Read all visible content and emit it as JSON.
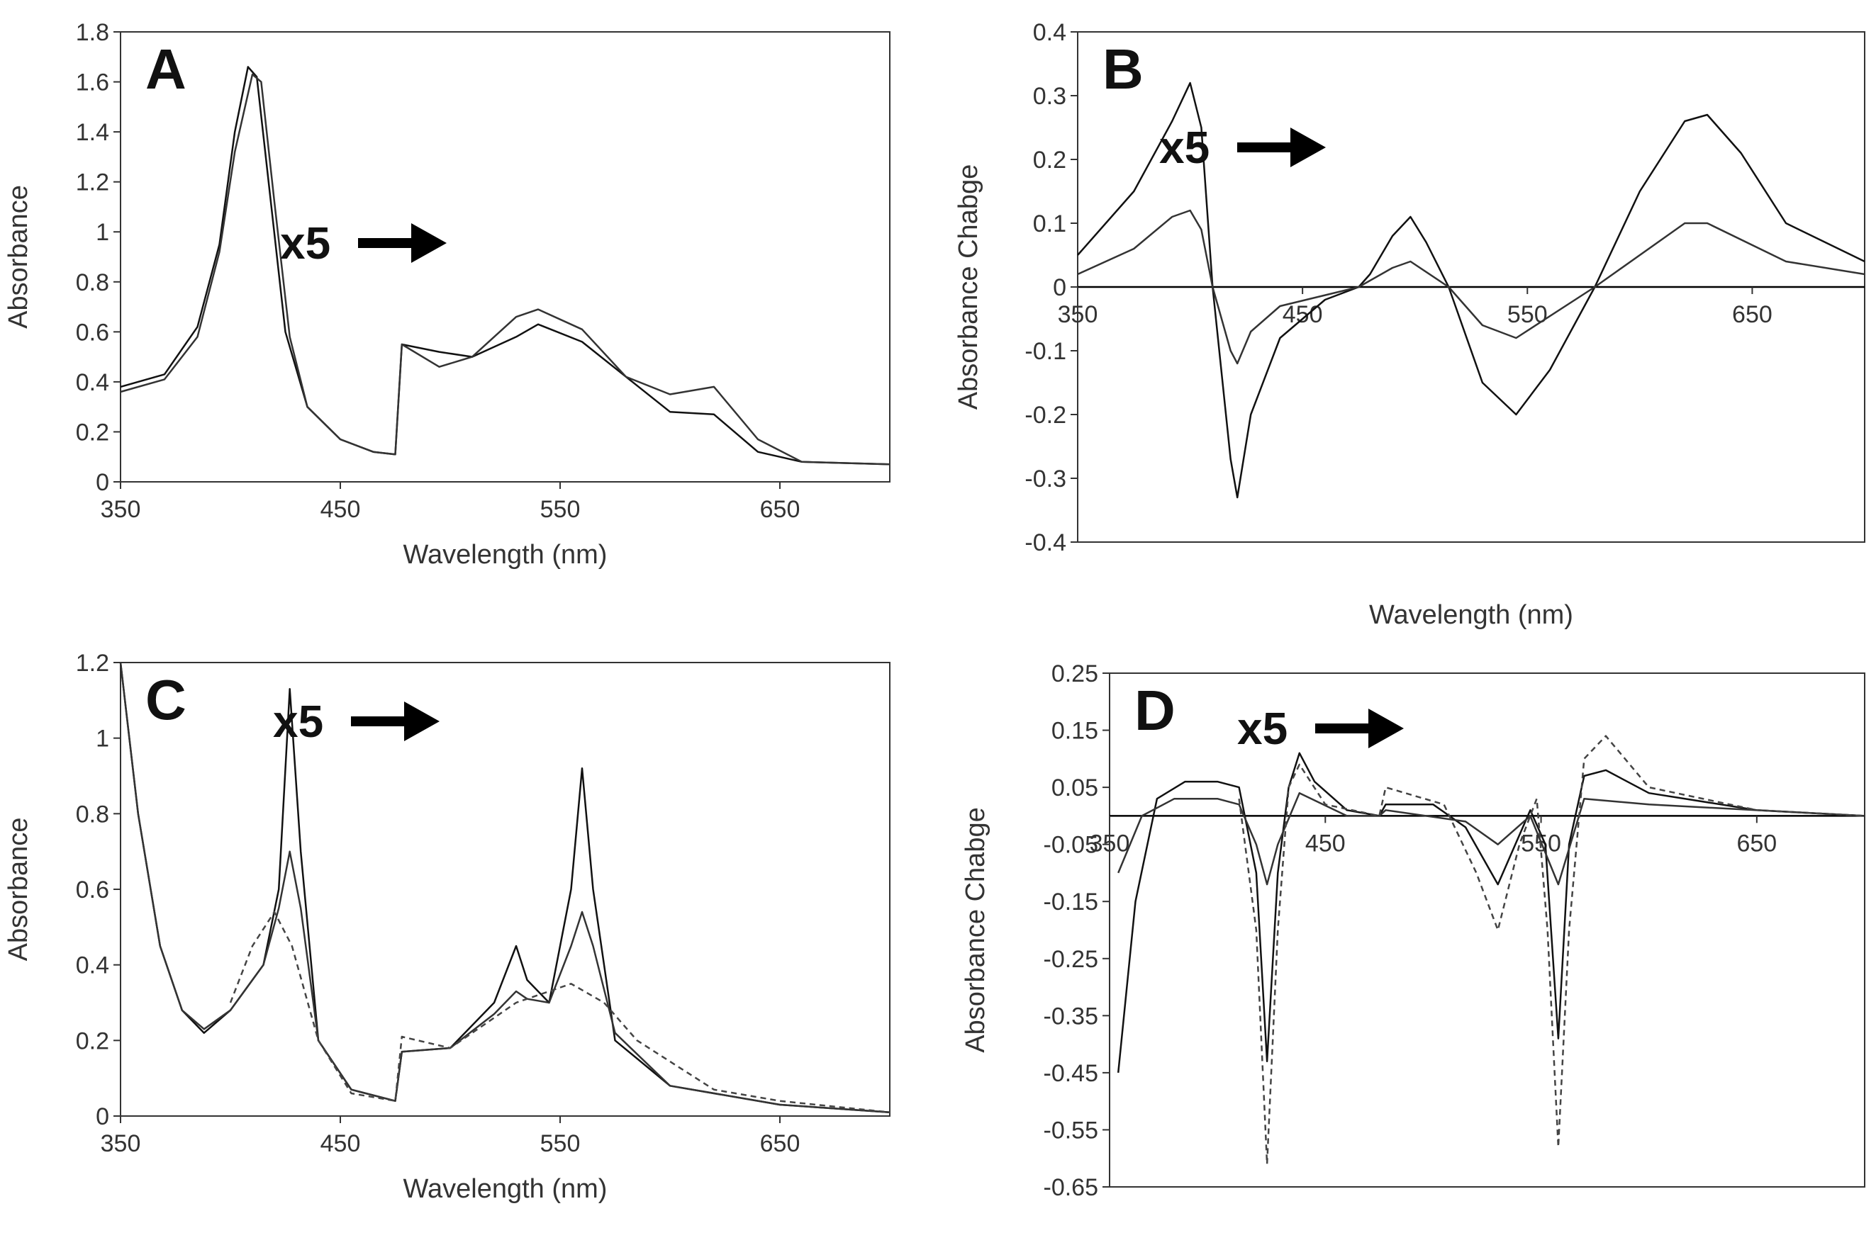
{
  "chart_data": [
    {
      "panel": "A",
      "type": "line",
      "xlabel": "Wavelength (nm)",
      "ylabel": "Absorbance",
      "xlim": [
        350,
        700
      ],
      "ylim": [
        0,
        1.8
      ],
      "xticks": [
        350,
        450,
        550,
        650
      ],
      "yticks": [
        0,
        0.2,
        0.4,
        0.6,
        0.8,
        1,
        1.2,
        1.4,
        1.6,
        1.8
      ],
      "zero_line": false,
      "magnification": {
        "label": "x5",
        "start_x": 475,
        "arrow": "right"
      },
      "series_count": 11,
      "series_style": "thin gray/black lines",
      "series": [
        {
          "style": "solid",
          "points": [
            [
              350,
              0.38
            ],
            [
              370,
              0.43
            ],
            [
              385,
              0.62
            ],
            [
              395,
              0.95
            ],
            [
              402,
              1.4
            ],
            [
              408,
              1.66
            ],
            [
              412,
              1.62
            ],
            [
              418,
              1.15
            ],
            [
              425,
              0.6
            ],
            [
              435,
              0.3
            ],
            [
              450,
              0.17
            ],
            [
              465,
              0.12
            ],
            [
              475,
              0.11
            ],
            [
              478,
              0.55
            ],
            [
              495,
              0.52
            ],
            [
              510,
              0.5
            ],
            [
              530,
              0.58
            ],
            [
              540,
              0.63
            ],
            [
              560,
              0.56
            ],
            [
              580,
              0.42
            ],
            [
              600,
              0.28
            ],
            [
              620,
              0.27
            ],
            [
              640,
              0.12
            ],
            [
              660,
              0.08
            ],
            [
              700,
              0.07
            ]
          ]
        },
        {
          "style": "solid",
          "points": [
            [
              350,
              0.36
            ],
            [
              370,
              0.41
            ],
            [
              385,
              0.58
            ],
            [
              395,
              0.92
            ],
            [
              402,
              1.32
            ],
            [
              410,
              1.63
            ],
            [
              414,
              1.6
            ],
            [
              420,
              1.12
            ],
            [
              427,
              0.58
            ],
            [
              435,
              0.3
            ],
            [
              450,
              0.17
            ],
            [
              465,
              0.12
            ],
            [
              475,
              0.11
            ],
            [
              478,
              0.55
            ],
            [
              495,
              0.46
            ],
            [
              510,
              0.5
            ],
            [
              530,
              0.66
            ],
            [
              540,
              0.69
            ],
            [
              560,
              0.61
            ],
            [
              580,
              0.42
            ],
            [
              600,
              0.35
            ],
            [
              620,
              0.38
            ],
            [
              640,
              0.17
            ],
            [
              660,
              0.08
            ],
            [
              700,
              0.07
            ]
          ]
        }
      ]
    },
    {
      "panel": "B",
      "type": "line",
      "xlabel": "Wavelength (nm)",
      "ylabel": "Absorbance Chabge",
      "xlim": [
        350,
        700
      ],
      "ylim": [
        -0.4,
        0.4
      ],
      "xticks": [
        350,
        450,
        550,
        650
      ],
      "yticks": [
        -0.4,
        -0.3,
        -0.2,
        -0.1,
        0,
        0.1,
        0.2,
        0.3,
        0.4
      ],
      "zero_line": true,
      "magnification": {
        "label": "x5",
        "start_x": 475,
        "arrow": "right"
      },
      "series_count": 11,
      "series_style": "thin gray/black lines",
      "series": [
        {
          "style": "solid",
          "points": [
            [
              350,
              0.05
            ],
            [
              375,
              0.15
            ],
            [
              392,
              0.26
            ],
            [
              400,
              0.32
            ],
            [
              405,
              0.25
            ],
            [
              410,
              0.0
            ],
            [
              418,
              -0.27
            ],
            [
              421,
              -0.33
            ],
            [
              427,
              -0.2
            ],
            [
              440,
              -0.08
            ],
            [
              460,
              -0.02
            ],
            [
              475,
              0.0
            ],
            [
              480,
              0.02
            ],
            [
              490,
              0.08
            ],
            [
              498,
              0.11
            ],
            [
              505,
              0.07
            ],
            [
              515,
              0.0
            ],
            [
              530,
              -0.15
            ],
            [
              545,
              -0.2
            ],
            [
              560,
              -0.13
            ],
            [
              580,
              0.0
            ],
            [
              600,
              0.15
            ],
            [
              620,
              0.26
            ],
            [
              630,
              0.27
            ],
            [
              645,
              0.21
            ],
            [
              665,
              0.1
            ],
            [
              700,
              0.04
            ]
          ]
        },
        {
          "style": "solid",
          "points": [
            [
              350,
              0.02
            ],
            [
              375,
              0.06
            ],
            [
              392,
              0.11
            ],
            [
              400,
              0.12
            ],
            [
              405,
              0.09
            ],
            [
              410,
              0.0
            ],
            [
              418,
              -0.1
            ],
            [
              421,
              -0.12
            ],
            [
              427,
              -0.07
            ],
            [
              440,
              -0.03
            ],
            [
              475,
              0.0
            ],
            [
              490,
              0.03
            ],
            [
              498,
              0.04
            ],
            [
              515,
              0.0
            ],
            [
              530,
              -0.06
            ],
            [
              545,
              -0.08
            ],
            [
              580,
              0.0
            ],
            [
              620,
              0.1
            ],
            [
              630,
              0.1
            ],
            [
              665,
              0.04
            ],
            [
              700,
              0.02
            ]
          ]
        }
      ]
    },
    {
      "panel": "C",
      "type": "line",
      "xlabel": "Wavelength (nm)",
      "ylabel": "Absorbance",
      "xlim": [
        350,
        700
      ],
      "ylim": [
        0,
        1.2
      ],
      "xticks": [
        350,
        450,
        550,
        650
      ],
      "yticks": [
        0,
        0.2,
        0.4,
        0.6,
        0.8,
        1,
        1.2
      ],
      "zero_line": false,
      "magnification": {
        "label": "x5",
        "start_x": 475,
        "arrow": "right"
      },
      "series_count": 11,
      "series_style": "thin gray/black lines, one dashed",
      "series": [
        {
          "style": "solid",
          "points": [
            [
              350,
              1.2
            ],
            [
              358,
              0.8
            ],
            [
              368,
              0.45
            ],
            [
              378,
              0.28
            ],
            [
              388,
              0.22
            ],
            [
              400,
              0.28
            ],
            [
              415,
              0.4
            ],
            [
              422,
              0.6
            ],
            [
              427,
              1.13
            ],
            [
              432,
              0.7
            ],
            [
              440,
              0.2
            ],
            [
              455,
              0.07
            ],
            [
              475,
              0.04
            ],
            [
              478,
              0.17
            ],
            [
              500,
              0.18
            ],
            [
              520,
              0.3
            ],
            [
              530,
              0.45
            ],
            [
              535,
              0.36
            ],
            [
              545,
              0.3
            ],
            [
              555,
              0.6
            ],
            [
              560,
              0.92
            ],
            [
              565,
              0.6
            ],
            [
              575,
              0.2
            ],
            [
              600,
              0.08
            ],
            [
              650,
              0.03
            ],
            [
              700,
              0.01
            ]
          ]
        },
        {
          "style": "solid",
          "points": [
            [
              350,
              1.2
            ],
            [
              358,
              0.8
            ],
            [
              368,
              0.45
            ],
            [
              378,
              0.28
            ],
            [
              388,
              0.23
            ],
            [
              400,
              0.28
            ],
            [
              415,
              0.4
            ],
            [
              422,
              0.55
            ],
            [
              427,
              0.7
            ],
            [
              432,
              0.55
            ],
            [
              440,
              0.2
            ],
            [
              455,
              0.07
            ],
            [
              475,
              0.04
            ],
            [
              478,
              0.17
            ],
            [
              500,
              0.18
            ],
            [
              520,
              0.27
            ],
            [
              530,
              0.33
            ],
            [
              535,
              0.31
            ],
            [
              545,
              0.3
            ],
            [
              555,
              0.45
            ],
            [
              560,
              0.54
            ],
            [
              565,
              0.45
            ],
            [
              575,
              0.22
            ],
            [
              600,
              0.08
            ],
            [
              650,
              0.03
            ],
            [
              700,
              0.01
            ]
          ]
        },
        {
          "style": "dashed",
          "points": [
            [
              400,
              0.3
            ],
            [
              410,
              0.45
            ],
            [
              420,
              0.54
            ],
            [
              428,
              0.45
            ],
            [
              440,
              0.2
            ],
            [
              455,
              0.06
            ],
            [
              475,
              0.04
            ],
            [
              478,
              0.21
            ],
            [
              500,
              0.18
            ],
            [
              530,
              0.3
            ],
            [
              555,
              0.35
            ],
            [
              570,
              0.3
            ],
            [
              585,
              0.2
            ],
            [
              620,
              0.07
            ],
            [
              650,
              0.04
            ],
            [
              700,
              0.01
            ]
          ]
        }
      ]
    },
    {
      "panel": "D",
      "type": "line",
      "xlabel": "Wavelength (nm)",
      "ylabel": "Absorbance Chabge",
      "xlim": [
        350,
        700
      ],
      "ylim": [
        -0.65,
        0.25
      ],
      "xticks": [
        350,
        450,
        550,
        650
      ],
      "yticks": [
        -0.65,
        -0.55,
        -0.45,
        -0.35,
        -0.25,
        -0.15,
        -0.05,
        0.05,
        0.15,
        0.25
      ],
      "zero_line": true,
      "magnification": {
        "label": "x5",
        "start_x": 475,
        "arrow": "right"
      },
      "series_count": 11,
      "series_style": "thin gray/black lines, one dashed",
      "series": [
        {
          "style": "solid",
          "points": [
            [
              354,
              -0.45
            ],
            [
              362,
              -0.15
            ],
            [
              372,
              0.03
            ],
            [
              385,
              0.06
            ],
            [
              400,
              0.06
            ],
            [
              410,
              0.05
            ],
            [
              418,
              -0.1
            ],
            [
              423,
              -0.43
            ],
            [
              428,
              -0.1
            ],
            [
              433,
              0.05
            ],
            [
              438,
              0.11
            ],
            [
              445,
              0.06
            ],
            [
              460,
              0.01
            ],
            [
              475,
              0.0
            ],
            [
              478,
              0.02
            ],
            [
              500,
              0.02
            ],
            [
              515,
              -0.02
            ],
            [
              530,
              -0.12
            ],
            [
              545,
              0.01
            ],
            [
              552,
              -0.05
            ],
            [
              558,
              -0.39
            ],
            [
              563,
              -0.05
            ],
            [
              570,
              0.07
            ],
            [
              580,
              0.08
            ],
            [
              600,
              0.04
            ],
            [
              650,
              0.01
            ],
            [
              700,
              0.0
            ]
          ]
        },
        {
          "style": "solid",
          "points": [
            [
              354,
              -0.1
            ],
            [
              365,
              0.0
            ],
            [
              380,
              0.03
            ],
            [
              400,
              0.03
            ],
            [
              410,
              0.02
            ],
            [
              418,
              -0.05
            ],
            [
              423,
              -0.12
            ],
            [
              428,
              -0.05
            ],
            [
              438,
              0.04
            ],
            [
              460,
              0.0
            ],
            [
              475,
              0.0
            ],
            [
              478,
              0.01
            ],
            [
              515,
              -0.01
            ],
            [
              530,
              -0.05
            ],
            [
              545,
              0.0
            ],
            [
              558,
              -0.12
            ],
            [
              570,
              0.03
            ],
            [
              600,
              0.02
            ],
            [
              700,
              0.0
            ]
          ]
        },
        {
          "style": "dashed",
          "points": [
            [
              410,
              0.03
            ],
            [
              418,
              -0.2
            ],
            [
              423,
              -0.61
            ],
            [
              428,
              -0.2
            ],
            [
              433,
              0.05
            ],
            [
              438,
              0.09
            ],
            [
              450,
              0.02
            ],
            [
              475,
              0.0
            ],
            [
              478,
              0.05
            ],
            [
              505,
              0.02
            ],
            [
              520,
              -0.1
            ],
            [
              530,
              -0.2
            ],
            [
              540,
              -0.05
            ],
            [
              548,
              0.03
            ],
            [
              553,
              -0.2
            ],
            [
              558,
              -0.58
            ],
            [
              563,
              -0.2
            ],
            [
              570,
              0.1
            ],
            [
              580,
              0.14
            ],
            [
              600,
              0.05
            ],
            [
              650,
              0.01
            ],
            [
              700,
              0.0
            ]
          ]
        }
      ]
    }
  ]
}
